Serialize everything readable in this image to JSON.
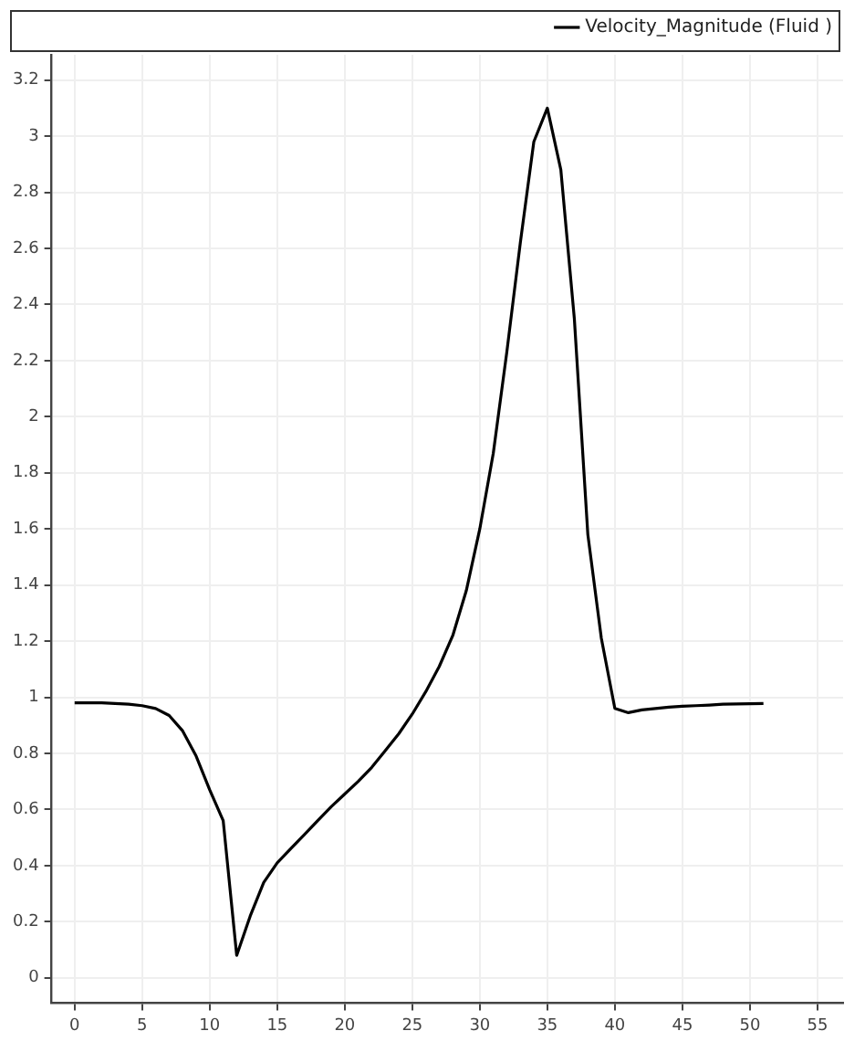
{
  "chart_data": {
    "type": "line",
    "x": [
      0,
      1,
      2,
      3,
      4,
      5,
      6,
      7,
      8,
      9,
      10,
      11,
      12,
      13,
      14,
      15,
      16,
      17,
      18,
      19,
      20,
      21,
      22,
      23,
      24,
      25,
      26,
      27,
      28,
      29,
      30,
      31,
      32,
      33,
      34,
      35,
      36,
      37,
      38,
      39,
      40,
      41,
      42,
      43,
      44,
      45,
      46,
      47,
      48,
      49,
      50,
      51
    ],
    "series": [
      {
        "name": "Velocity_Magnitude (Fluid )",
        "color": "#000000",
        "values": [
          0.98,
          0.98,
          0.98,
          0.978,
          0.975,
          0.97,
          0.96,
          0.935,
          0.88,
          0.79,
          0.67,
          0.56,
          0.08,
          0.22,
          0.34,
          0.41,
          0.46,
          0.51,
          0.56,
          0.61,
          0.655,
          0.7,
          0.75,
          0.81,
          0.87,
          0.94,
          1.02,
          1.11,
          1.22,
          1.38,
          1.6,
          1.87,
          2.23,
          2.62,
          2.98,
          3.1,
          2.88,
          2.35,
          1.58,
          1.21,
          0.96,
          0.945,
          0.955,
          0.96,
          0.965,
          0.968,
          0.97,
          0.972,
          0.975,
          0.976,
          0.977,
          0.978
        ]
      }
    ],
    "xlim": [
      -1.7,
      56.9
    ],
    "ylim": [
      -0.09,
      3.29
    ],
    "xticks": [
      0,
      5,
      10,
      15,
      20,
      25,
      30,
      35,
      40,
      45,
      50,
      55
    ],
    "yticks": [
      0,
      0.2,
      0.4,
      0.6,
      0.8,
      1,
      1.2,
      1.4,
      1.6,
      1.8,
      2,
      2.2,
      2.4,
      2.6,
      2.8,
      3,
      3.2
    ],
    "grid": true,
    "legend": "top right",
    "marker": "none",
    "line_style": "solid"
  }
}
